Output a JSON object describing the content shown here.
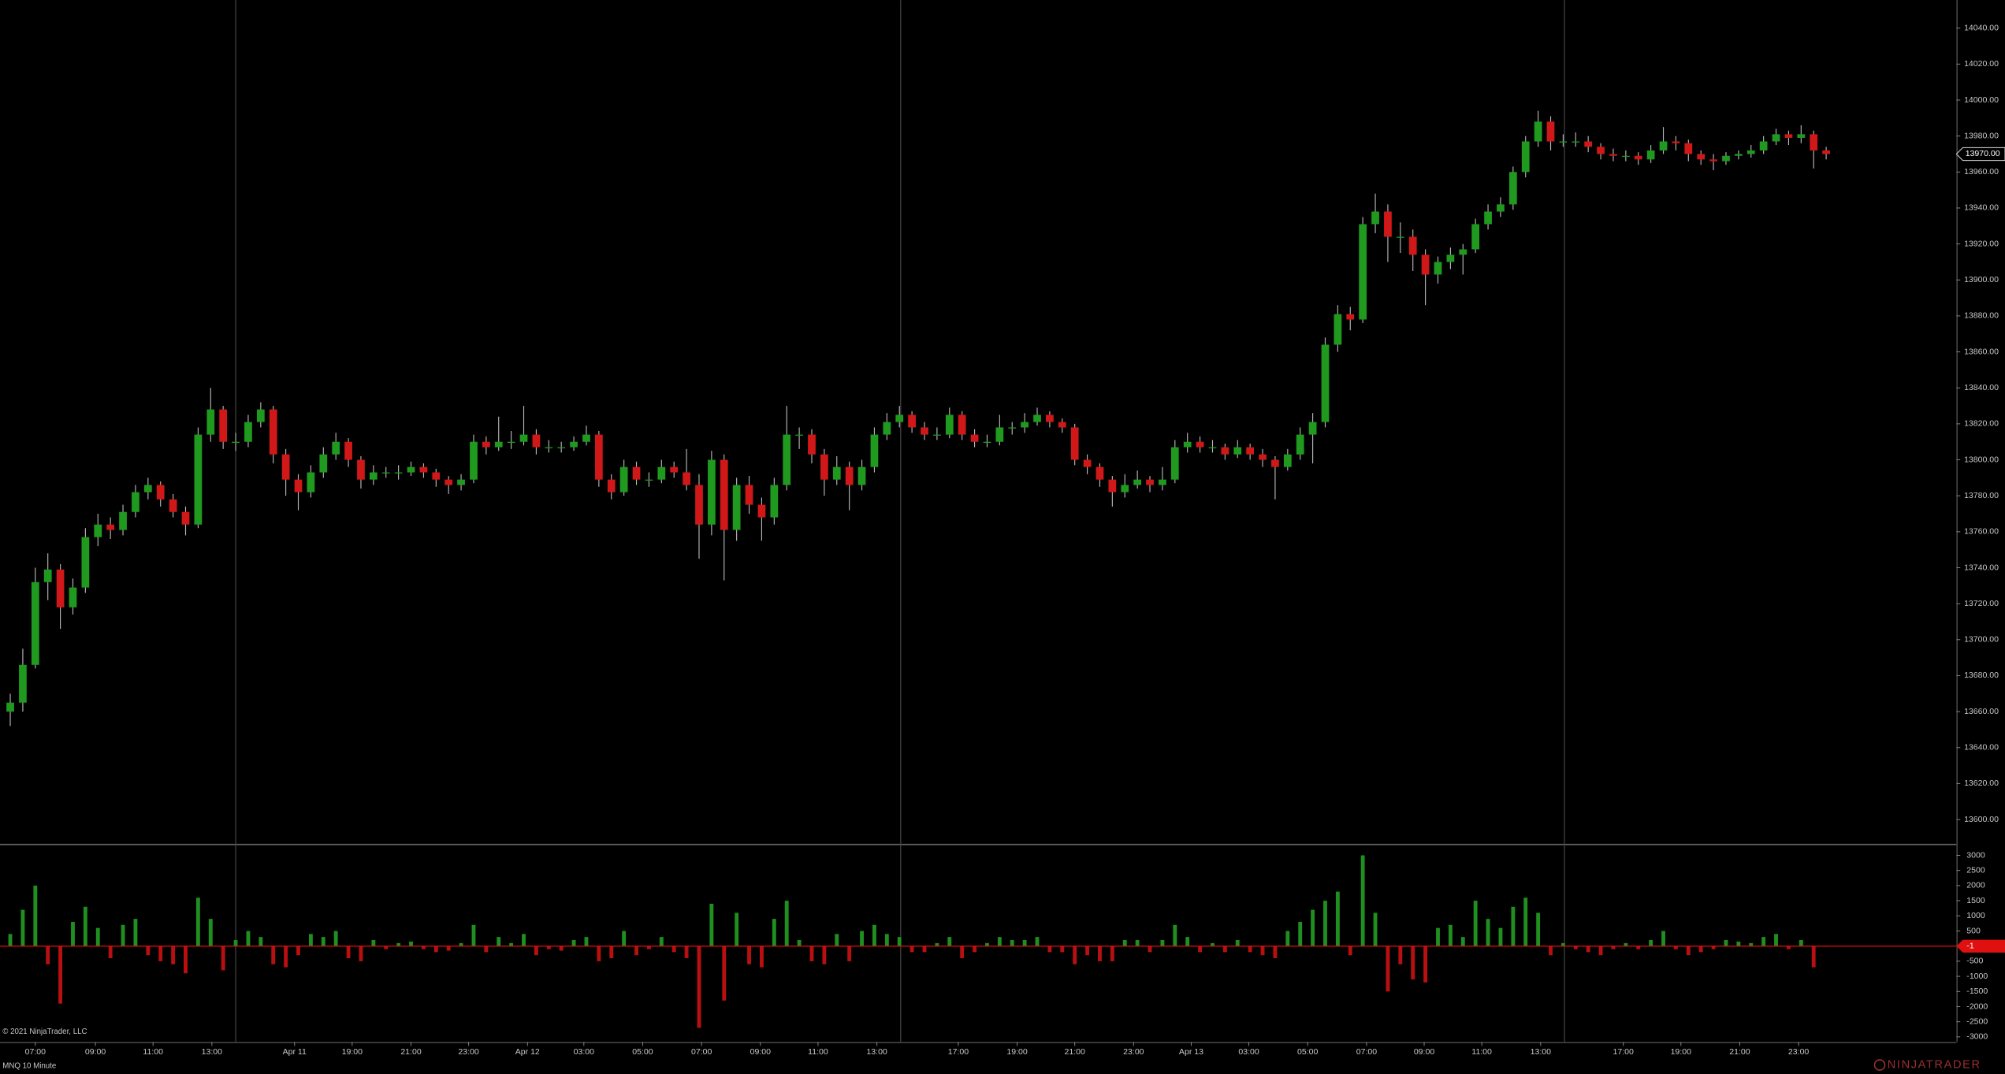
{
  "chart_data": [
    {
      "type": "candlestick",
      "up_color": "#1f9a1f",
      "down_color": "#d01818",
      "wick_color": "#b8b8b8",
      "ylim": [
        13586.5,
        14055.6
      ],
      "xlim": [
        -0.82,
        155.4
      ],
      "yticks": [
        {
          "value": 13600,
          "label": "13600.00"
        },
        {
          "value": 13620,
          "label": "13620.00"
        },
        {
          "value": 13640,
          "label": "13640.00"
        },
        {
          "value": 13660,
          "label": "13660.00"
        },
        {
          "value": 13680,
          "label": "13680.00"
        },
        {
          "value": 13700,
          "label": "13700.00"
        },
        {
          "value": 13720,
          "label": "13720.00"
        },
        {
          "value": 13740,
          "label": "13740.00"
        },
        {
          "value": 13760,
          "label": "13760.00"
        },
        {
          "value": 13780,
          "label": "13780.00"
        },
        {
          "value": 13800,
          "label": "13800.00"
        },
        {
          "value": 13820,
          "label": "13820.00"
        },
        {
          "value": 13840,
          "label": "13840.00"
        },
        {
          "value": 13860,
          "label": "13860.00"
        },
        {
          "value": 13880,
          "label": "13880.00"
        },
        {
          "value": 13900,
          "label": "13900.00"
        },
        {
          "value": 13920,
          "label": "13920.00"
        },
        {
          "value": 13940,
          "label": "13940.00"
        },
        {
          "value": 13960,
          "label": "13960.00"
        },
        {
          "value": 13980,
          "label": "13980.00"
        },
        {
          "value": 14000,
          "label": "14000.00"
        },
        {
          "value": 14020,
          "label": "14020.00"
        },
        {
          "value": 14040,
          "label": "14040.00"
        }
      ],
      "xticks": [
        {
          "value": 2.0,
          "label": "07:00"
        },
        {
          "value": 6.8,
          "label": "09:00"
        },
        {
          "value": 11.4,
          "label": "11:00"
        },
        {
          "value": 16.1,
          "label": "13:00"
        },
        {
          "value": 22.7,
          "label": "Apr 11"
        },
        {
          "value": 27.3,
          "label": "19:00"
        },
        {
          "value": 32.0,
          "label": "21:00"
        },
        {
          "value": 36.6,
          "label": "23:00"
        },
        {
          "value": 41.3,
          "label": "Apr 12"
        },
        {
          "value": 45.8,
          "label": "03:00"
        },
        {
          "value": 50.5,
          "label": "05:00"
        },
        {
          "value": 55.2,
          "label": "07:00"
        },
        {
          "value": 59.9,
          "label": "09:00"
        },
        {
          "value": 64.5,
          "label": "11:00"
        },
        {
          "value": 69.2,
          "label": "13:00"
        },
        {
          "value": 75.7,
          "label": "17:00"
        },
        {
          "value": 80.4,
          "label": "19:00"
        },
        {
          "value": 85.0,
          "label": "21:00"
        },
        {
          "value": 89.7,
          "label": "23:00"
        },
        {
          "value": 94.3,
          "label": "Apr 13"
        },
        {
          "value": 98.9,
          "label": "03:00"
        },
        {
          "value": 103.6,
          "label": "05:00"
        },
        {
          "value": 108.3,
          "label": "07:00"
        },
        {
          "value": 112.9,
          "label": "09:00"
        },
        {
          "value": 117.5,
          "label": "11:00"
        },
        {
          "value": 122.2,
          "label": "13:00"
        },
        {
          "value": 128.8,
          "label": "17:00"
        },
        {
          "value": 133.4,
          "label": "19:00"
        },
        {
          "value": 138.1,
          "label": "21:00"
        },
        {
          "value": 142.8,
          "label": "23:00"
        }
      ],
      "session_breaks": [
        18.0,
        71.1,
        124.1
      ],
      "last_price": {
        "value": 13970,
        "label": "13970.00"
      },
      "ohlc": [
        [
          13660,
          13670,
          13652,
          13665
        ],
        [
          13665,
          13695,
          13660,
          13686
        ],
        [
          13686,
          13740,
          13684,
          13732
        ],
        [
          13732,
          13748,
          13722,
          13739
        ],
        [
          13739,
          13742,
          13706,
          13718
        ],
        [
          13718,
          13734,
          13714,
          13729
        ],
        [
          13729,
          13762,
          13726,
          13757
        ],
        [
          13757,
          13770,
          13752,
          13764
        ],
        [
          13764,
          13768,
          13756,
          13761
        ],
        [
          13761,
          13775,
          13758,
          13771
        ],
        [
          13771,
          13786,
          13768,
          13782
        ],
        [
          13782,
          13790,
          13778,
          13786
        ],
        [
          13786,
          13788,
          13774,
          13778
        ],
        [
          13778,
          13781,
          13768,
          13771
        ],
        [
          13771,
          13774,
          13758,
          13764
        ],
        [
          13764,
          13818,
          13762,
          13814
        ],
        [
          13814,
          13840,
          13810,
          13828
        ],
        [
          13828,
          13830,
          13806,
          13810
        ],
        [
          13810,
          13815,
          13805,
          13810
        ],
        [
          13810,
          13825,
          13807,
          13821
        ],
        [
          13821,
          13832,
          13818,
          13828
        ],
        [
          13828,
          13830,
          13798,
          13803
        ],
        [
          13803,
          13806,
          13780,
          13789
        ],
        [
          13789,
          13792,
          13772,
          13782
        ],
        [
          13782,
          13797,
          13779,
          13793
        ],
        [
          13793,
          13807,
          13790,
          13803
        ],
        [
          13803,
          13815,
          13800,
          13810
        ],
        [
          13810,
          13812,
          13796,
          13800
        ],
        [
          13800,
          13802,
          13784,
          13789
        ],
        [
          13789,
          13797,
          13786,
          13793
        ],
        [
          13793,
          13796,
          13790,
          13793
        ],
        [
          13793,
          13797,
          13789,
          13793
        ],
        [
          13793,
          13799,
          13791,
          13796
        ],
        [
          13796,
          13798,
          13790,
          13793
        ],
        [
          13793,
          13795,
          13785,
          13789
        ],
        [
          13789,
          13791,
          13781,
          13786
        ],
        [
          13786,
          13792,
          13783,
          13789
        ],
        [
          13789,
          13814,
          13787,
          13810
        ],
        [
          13810,
          13813,
          13803,
          13807
        ],
        [
          13807,
          13824,
          13805,
          13810
        ],
        [
          13810,
          13816,
          13806,
          13810
        ],
        [
          13810,
          13830,
          13808,
          13814
        ],
        [
          13814,
          13817,
          13803,
          13807
        ],
        [
          13807,
          13811,
          13804,
          13807
        ],
        [
          13807,
          13810,
          13804,
          13807
        ],
        [
          13807,
          13813,
          13805,
          13810
        ],
        [
          13810,
          13819,
          13808,
          13814
        ],
        [
          13814,
          13816,
          13785,
          13789
        ],
        [
          13789,
          13792,
          13778,
          13782
        ],
        [
          13782,
          13800,
          13780,
          13796
        ],
        [
          13796,
          13799,
          13786,
          13789
        ],
        [
          13789,
          13793,
          13785,
          13789
        ],
        [
          13789,
          13800,
          13787,
          13796
        ],
        [
          13796,
          13799,
          13790,
          13793
        ],
        [
          13793,
          13806,
          13783,
          13786
        ],
        [
          13786,
          13792,
          13745,
          13764
        ],
        [
          13764,
          13805,
          13758,
          13800
        ],
        [
          13800,
          13803,
          13733,
          13761
        ],
        [
          13761,
          13790,
          13755,
          13786
        ],
        [
          13786,
          13791,
          13770,
          13775
        ],
        [
          13775,
          13779,
          13755,
          13768
        ],
        [
          13768,
          13790,
          13764,
          13786
        ],
        [
          13786,
          13830,
          13783,
          13814
        ],
        [
          13814,
          13818,
          13806,
          13814
        ],
        [
          13814,
          13817,
          13798,
          13803
        ],
        [
          13803,
          13806,
          13780,
          13789
        ],
        [
          13789,
          13802,
          13786,
          13796
        ],
        [
          13796,
          13799,
          13772,
          13786
        ],
        [
          13786,
          13800,
          13783,
          13796
        ],
        [
          13796,
          13818,
          13793,
          13814
        ],
        [
          13814,
          13826,
          13811,
          13821
        ],
        [
          13821,
          13830,
          13818,
          13825
        ],
        [
          13825,
          13827,
          13815,
          13818
        ],
        [
          13818,
          13821,
          13811,
          13814
        ],
        [
          13814,
          13818,
          13811,
          13814
        ],
        [
          13814,
          13829,
          13812,
          13825
        ],
        [
          13825,
          13827,
          13811,
          13814
        ],
        [
          13814,
          13817,
          13807,
          13810
        ],
        [
          13810,
          13814,
          13807,
          13810
        ],
        [
          13810,
          13825,
          13808,
          13818
        ],
        [
          13818,
          13821,
          13814,
          13818
        ],
        [
          13818,
          13826,
          13815,
          13821
        ],
        [
          13821,
          13829,
          13819,
          13825
        ],
        [
          13825,
          13827,
          13818,
          13821
        ],
        [
          13821,
          13823,
          13815,
          13818
        ],
        [
          13818,
          13820,
          13797,
          13800
        ],
        [
          13800,
          13803,
          13792,
          13796
        ],
        [
          13796,
          13798,
          13785,
          13789
        ],
        [
          13789,
          13791,
          13774,
          13782
        ],
        [
          13782,
          13792,
          13779,
          13786
        ],
        [
          13786,
          13794,
          13784,
          13789
        ],
        [
          13789,
          13791,
          13782,
          13786
        ],
        [
          13786,
          13796,
          13783,
          13789
        ],
        [
          13789,
          13811,
          13787,
          13807
        ],
        [
          13807,
          13815,
          13804,
          13810
        ],
        [
          13810,
          13813,
          13804,
          13807
        ],
        [
          13807,
          13811,
          13804,
          13807
        ],
        [
          13807,
          13809,
          13800,
          13803
        ],
        [
          13803,
          13811,
          13801,
          13807
        ],
        [
          13807,
          13809,
          13800,
          13803
        ],
        [
          13803,
          13806,
          13796,
          13800
        ],
        [
          13800,
          13802,
          13778,
          13796
        ],
        [
          13796,
          13806,
          13794,
          13803
        ],
        [
          13803,
          13818,
          13800,
          13814
        ],
        [
          13814,
          13826,
          13798,
          13821
        ],
        [
          13821,
          13868,
          13818,
          13864
        ],
        [
          13864,
          13886,
          13860,
          13881
        ],
        [
          13881,
          13885,
          13872,
          13878
        ],
        [
          13878,
          13935,
          13876,
          13931
        ],
        [
          13931,
          13948,
          13926,
          13938
        ],
        [
          13938,
          13942,
          13910,
          13924
        ],
        [
          13924,
          13932,
          13915,
          13924
        ],
        [
          13924,
          13928,
          13905,
          13914
        ],
        [
          13914,
          13917,
          13886,
          13903
        ],
        [
          13903,
          13913,
          13898,
          13910
        ],
        [
          13910,
          13918,
          13906,
          13914
        ],
        [
          13914,
          13920,
          13903,
          13917
        ],
        [
          13917,
          13934,
          13915,
          13931
        ],
        [
          13931,
          13942,
          13928,
          13938
        ],
        [
          13938,
          13946,
          13935,
          13942
        ],
        [
          13942,
          13963,
          13939,
          13960
        ],
        [
          13960,
          13980,
          13957,
          13977
        ],
        [
          13977,
          13994,
          13974,
          13988
        ],
        [
          13988,
          13991,
          13972,
          13977
        ],
        [
          13977,
          13981,
          13974,
          13977
        ],
        [
          13977,
          13982,
          13974,
          13977
        ],
        [
          13977,
          13980,
          13971,
          13974
        ],
        [
          13974,
          13976,
          13967,
          13970
        ],
        [
          13970,
          13973,
          13966,
          13969
        ],
        [
          13969,
          13972,
          13966,
          13969
        ],
        [
          13969,
          13971,
          13964,
          13967
        ],
        [
          13967,
          13975,
          13965,
          13972
        ],
        [
          13972,
          13985,
          13970,
          13977
        ],
        [
          13977,
          13980,
          13972,
          13976
        ],
        [
          13976,
          13978,
          13966,
          13970
        ],
        [
          13970,
          13972,
          13964,
          13967
        ],
        [
          13967,
          13970,
          13961,
          13966
        ],
        [
          13966,
          13971,
          13964,
          13969
        ],
        [
          13969,
          13972,
          13967,
          13970
        ],
        [
          13970,
          13975,
          13968,
          13972
        ],
        [
          13972,
          13980,
          13970,
          13977
        ],
        [
          13977,
          13984,
          13975,
          13981
        ],
        [
          13981,
          13983,
          13975,
          13979
        ],
        [
          13979,
          13986,
          13976,
          13981
        ],
        [
          13981,
          13983,
          13962,
          13972
        ],
        [
          13972,
          13974,
          13967,
          13970
        ]
      ]
    },
    {
      "type": "bar",
      "up_color": "#1f8f1f",
      "down_color": "#b81010",
      "ylim": [
        -3169,
        3338
      ],
      "xlim": [
        -0.82,
        155.4
      ],
      "yticks": [
        3000,
        2500,
        2000,
        1500,
        1000,
        500,
        -500,
        -1000,
        -1500,
        -2000,
        -2500,
        -3000
      ],
      "current_value": -1,
      "values": [
        400,
        1200,
        2000,
        -600,
        -1900,
        800,
        1300,
        600,
        -400,
        700,
        900,
        -300,
        -500,
        -600,
        -900,
        1600,
        900,
        -800,
        200,
        500,
        300,
        -600,
        -700,
        -300,
        400,
        300,
        500,
        -400,
        -500,
        200,
        -100,
        100,
        150,
        -100,
        -200,
        -150,
        100,
        700,
        -200,
        300,
        100,
        400,
        -300,
        -100,
        -150,
        200,
        300,
        -500,
        -400,
        500,
        -300,
        -100,
        300,
        -200,
        -400,
        -2700,
        1400,
        -1800,
        1100,
        -600,
        -700,
        900,
        1500,
        200,
        -500,
        -600,
        400,
        -500,
        500,
        700,
        400,
        300,
        -200,
        -200,
        100,
        300,
        -400,
        -200,
        100,
        300,
        200,
        200,
        300,
        -200,
        -200,
        -600,
        -300,
        -500,
        -500,
        200,
        200,
        -200,
        200,
        700,
        300,
        -200,
        100,
        -200,
        200,
        -200,
        -300,
        -400,
        500,
        800,
        1200,
        1500,
        1800,
        -300,
        3000,
        1100,
        -1500,
        -600,
        -1100,
        -1200,
        600,
        700,
        300,
        1500,
        900,
        600,
        1300,
        1600,
        1100,
        -300,
        100,
        -100,
        -200,
        -300,
        -100,
        100,
        -100,
        200,
        500,
        -100,
        -300,
        -200,
        -100,
        200,
        150,
        100,
        300,
        400,
        -100,
        200,
        -700,
        -1
      ]
    }
  ],
  "copyright": "© 2021 NinjaTrader, LLC",
  "instrument": "MNQ 10 Minute",
  "logo": "NINJATRADER"
}
